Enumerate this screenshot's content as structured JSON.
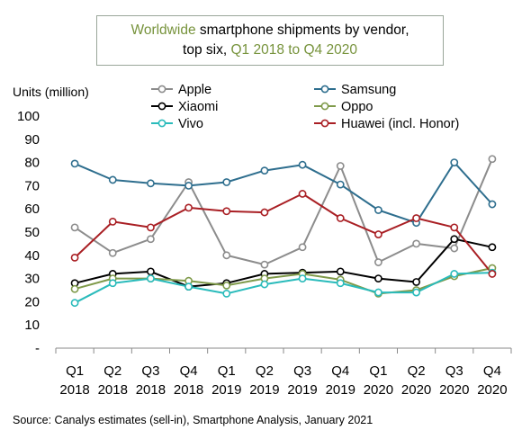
{
  "title": {
    "part1": "Worldwide",
    "part2": " smartphone shipments by vendor,",
    "part3": "top six, ",
    "part4": "Q1 2018 to Q4 2020"
  },
  "source": "Source:  Canalys estimates (sell-in), Smartphone Analysis, January 2021",
  "chart_data": {
    "type": "line",
    "ylabel": "Units (million)",
    "ylim": [
      0,
      100
    ],
    "yticks": [
      "-",
      "10",
      "20",
      "30",
      "40",
      "50",
      "60",
      "70",
      "80",
      "90",
      "100"
    ],
    "x_quarters": [
      "Q1",
      "Q2",
      "Q3",
      "Q4",
      "Q1",
      "Q2",
      "Q3",
      "Q4",
      "Q1",
      "Q2",
      "Q3",
      "Q4"
    ],
    "x_years": [
      "2018",
      "2018",
      "2018",
      "2018",
      "2019",
      "2019",
      "2019",
      "2019",
      "2020",
      "2020",
      "2020",
      "2020"
    ],
    "legend_placement": "top",
    "grid": false,
    "series": [
      {
        "name": "Apple",
        "color": "#8c8c8c",
        "values": [
          52,
          41,
          47,
          71.5,
          40,
          36,
          43.5,
          78.5,
          37,
          45,
          43,
          81.5
        ]
      },
      {
        "name": "Samsung",
        "color": "#2e6e8e",
        "values": [
          79.5,
          72.5,
          71,
          70,
          71.5,
          76.5,
          79,
          70.5,
          59.5,
          54,
          80,
          62
        ]
      },
      {
        "name": "Xiaomi",
        "color": "#000000",
        "values": [
          28,
          32,
          33,
          26.5,
          28,
          32,
          32.5,
          33,
          30,
          28.5,
          47,
          43.5
        ]
      },
      {
        "name": "Oppo",
        "color": "#7f9a4a",
        "values": [
          25.5,
          30,
          30,
          29,
          27,
          30,
          32,
          29.5,
          23.5,
          25,
          31,
          34.5
        ]
      },
      {
        "name": "Vivo",
        "color": "#2abbbb",
        "values": [
          19.5,
          28,
          30,
          26.5,
          23.5,
          27.5,
          30,
          28,
          24,
          24,
          32,
          32.5
        ]
      },
      {
        "name": "Huawei (incl. Honor)",
        "color": "#a91f24",
        "values": [
          39,
          54.5,
          52,
          60.5,
          59,
          58.5,
          66.5,
          56,
          49,
          56,
          52,
          32
        ]
      }
    ]
  }
}
